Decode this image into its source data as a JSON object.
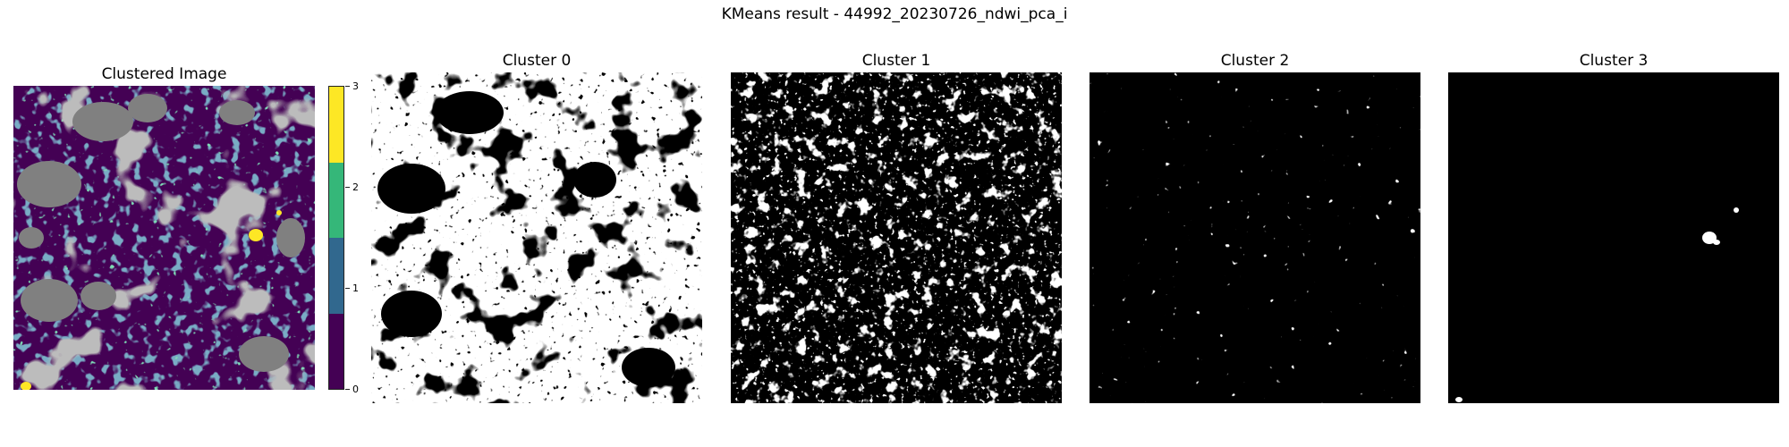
{
  "figure": {
    "suptitle": "KMeans result - 44992_20230726_ndwi_pca_i"
  },
  "panels": [
    {
      "title": "Clustered Image"
    },
    {
      "title": "Cluster 0"
    },
    {
      "title": "Cluster 1"
    },
    {
      "title": "Cluster 2"
    },
    {
      "title": "Cluster 3"
    }
  ],
  "colorbar": {
    "ticks": [
      "0",
      "1",
      "2",
      "3"
    ],
    "colors": [
      "#440154",
      "#31688e",
      "#35b779",
      "#fde725"
    ]
  },
  "colors": {
    "masked": "#808080",
    "mask_on": "#ffffff",
    "mask_off": "#000000"
  }
}
